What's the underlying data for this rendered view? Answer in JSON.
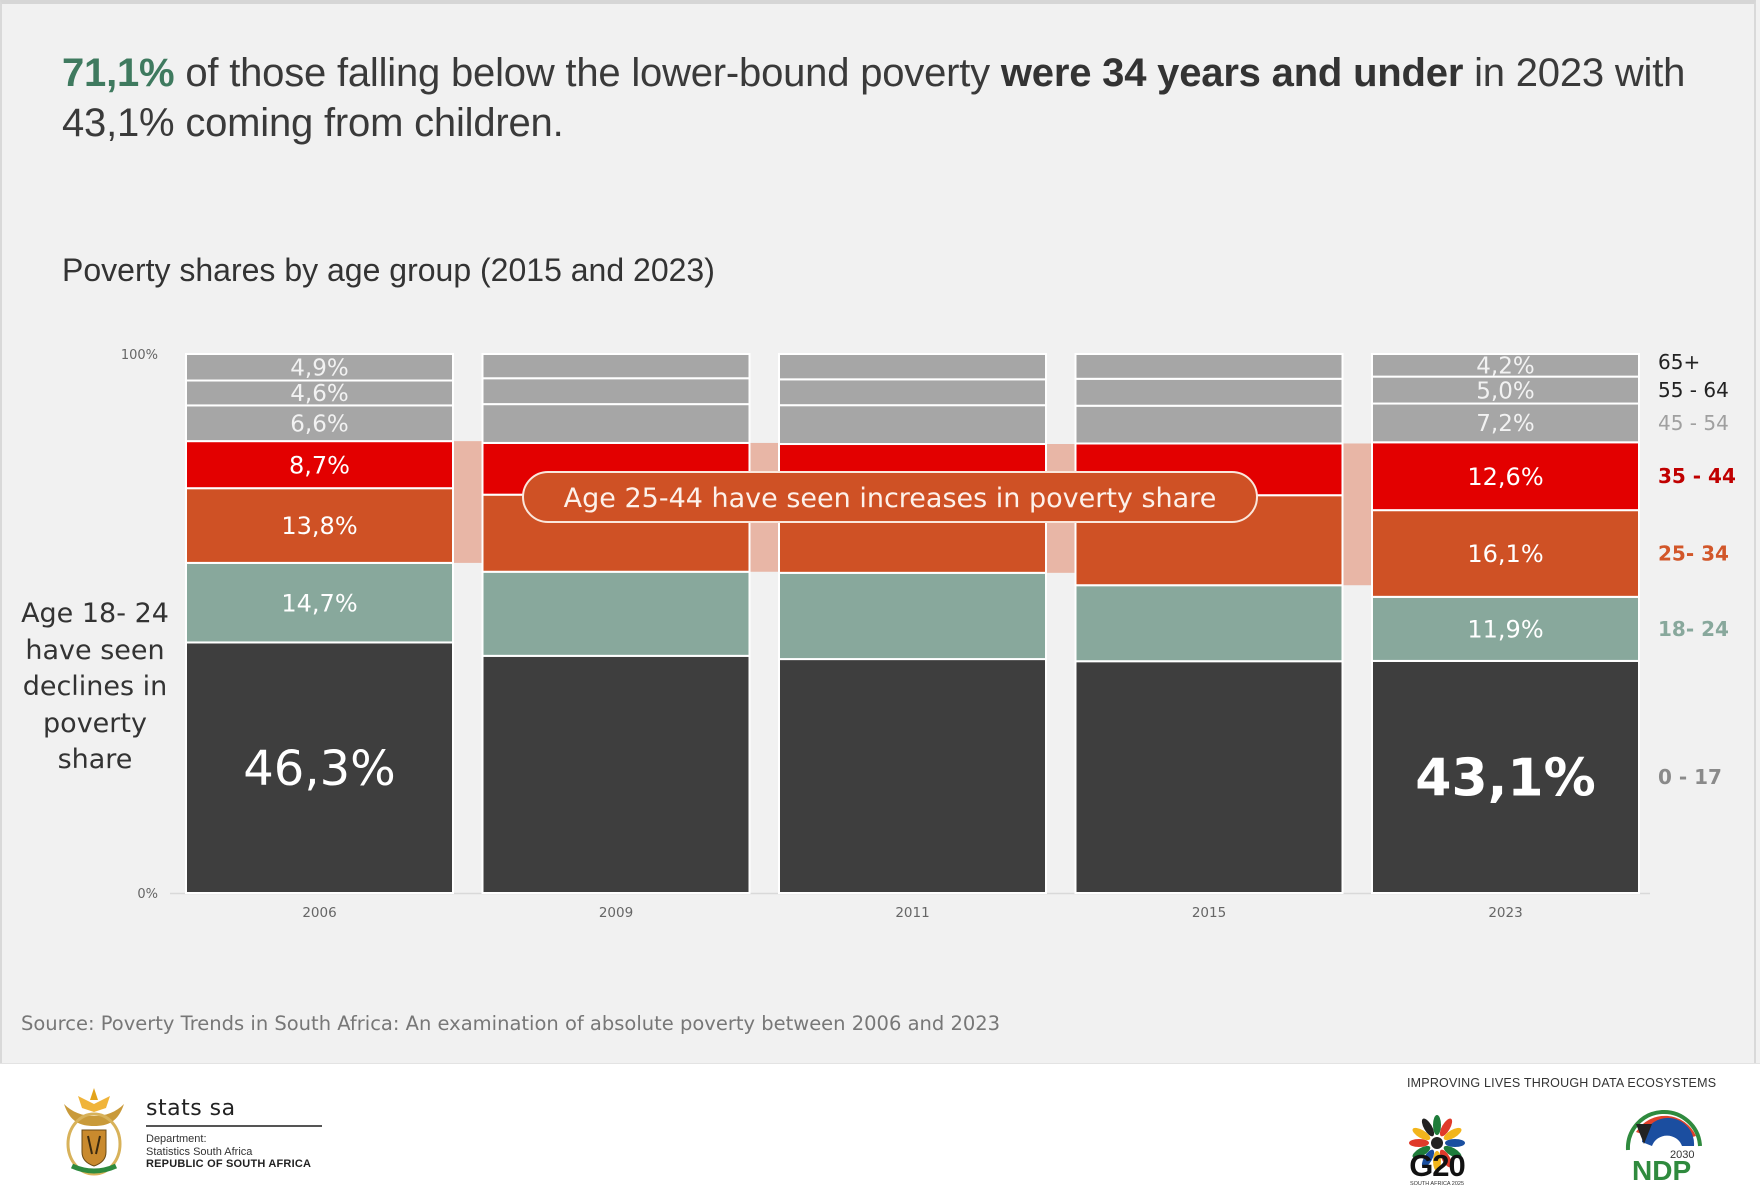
{
  "headline": {
    "accent": "71,1%",
    "part1": " of those falling below the lower-bound poverty ",
    "bold": "were 34 years and under",
    "part2": " in 2023 with 43,1% coming from children."
  },
  "annotations": {
    "side_note": "Age 18- 24 have seen declines in poverty share",
    "callout": "Age 25-44 have seen increases in poverty share"
  },
  "source": "Source: Poverty Trends in South Africa: An examination of absolute poverty between 2006 and 2023",
  "footer": {
    "org_name": "stats sa",
    "dept_line1": "Department:",
    "dept_line2": "Statistics South Africa",
    "country": "REPUBLIC OF SOUTH AFRICA",
    "tagline": "IMPROVING LIVES THROUGH DATA ECOSYSTEMS",
    "g20_label": "G20",
    "g20_sub": "SOUTH AFRICA 2025",
    "ndp_label": "NDP",
    "ndp_year": "2030"
  },
  "chart_data": {
    "type": "bar",
    "stacked": true,
    "percent_stacked": true,
    "title": "Poverty shares by age group (2015 and 2023)",
    "xlabel": "",
    "ylabel": "",
    "ylim": [
      0,
      100
    ],
    "y_ticks": [
      "0%",
      "100%"
    ],
    "categories": [
      "2006",
      "2009",
      "2011",
      "2015",
      "2023"
    ],
    "series": [
      {
        "name": "0 - 17",
        "color": "#3e3e3e",
        "legend_color": "#8a8a8a",
        "values": [
          46.3,
          44.0,
          43.4,
          43.0,
          43.1
        ],
        "labels": [
          "46,3%",
          "",
          "",
          "",
          "43,1%"
        ]
      },
      {
        "name": "18- 24",
        "color": "#88a89c",
        "legend_color": "#88a89c",
        "values": [
          14.7,
          15.6,
          16.0,
          14.1,
          11.9
        ],
        "labels": [
          "14,7%",
          "",
          "",
          "",
          "11,9%"
        ]
      },
      {
        "name": "25- 34",
        "color": "#cf5125",
        "legend_color": "#d2572a",
        "values": [
          13.8,
          14.3,
          14.3,
          16.7,
          16.1
        ],
        "labels": [
          "13,8%",
          "",
          "",
          "",
          "16,1%"
        ]
      },
      {
        "name": "35 - 44",
        "color": "#e30000",
        "legend_color": "#c00000",
        "values": [
          8.7,
          9.6,
          9.6,
          9.6,
          12.6
        ],
        "labels": [
          "8,7%",
          "",
          "",
          "",
          "12,6%"
        ]
      },
      {
        "name": "45 - 54",
        "color": "#a6a6a6",
        "legend_color": "#a0a0a0",
        "values": [
          6.6,
          7.2,
          7.2,
          7.0,
          7.2
        ],
        "labels": [
          "6,6%",
          "",
          "",
          "",
          "7,2%"
        ]
      },
      {
        "name": "55 - 64",
        "color": "#a6a6a6",
        "legend_color": "#222222",
        "values": [
          4.6,
          4.8,
          4.8,
          5.0,
          5.0
        ],
        "labels": [
          "4,6%",
          "",
          "",
          "",
          "5,0%"
        ]
      },
      {
        "name": "65+",
        "color": "#a6a6a6",
        "legend_color": "#222222",
        "values": [
          4.9,
          4.5,
          4.7,
          4.6,
          4.2
        ],
        "labels": [
          "4,9%",
          "",
          "",
          "",
          "4,2%"
        ]
      }
    ],
    "highlight_connector_series": [
      "25- 34",
      "35 - 44"
    ],
    "legend_position": "right",
    "grid": false
  }
}
